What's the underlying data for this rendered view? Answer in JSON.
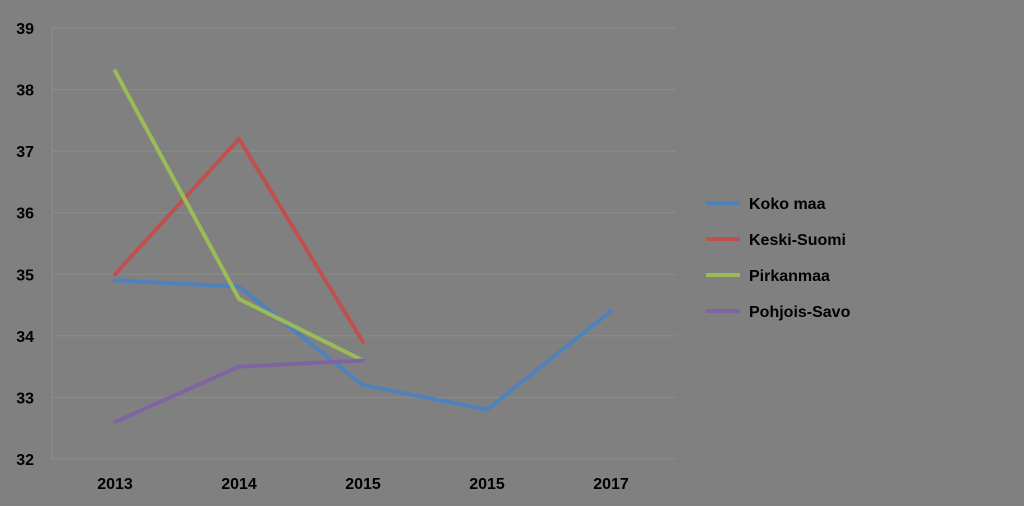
{
  "chart_data": {
    "type": "line",
    "title": "",
    "xlabel": "",
    "ylabel": "",
    "categories": [
      "2013",
      "2014",
      "2015",
      "2015",
      "2017"
    ],
    "ylim": [
      32,
      39
    ],
    "yticks": [
      32,
      33,
      34,
      35,
      36,
      37,
      38,
      39
    ],
    "grid": true,
    "legend": "right",
    "series": [
      {
        "name": "Koko maa",
        "color": "#4f81bd",
        "values": [
          34.9,
          34.8,
          33.2,
          32.8,
          34.4
        ]
      },
      {
        "name": "Keski-Suomi",
        "color": "#c0504d",
        "values": [
          35.0,
          37.2,
          33.9,
          null,
          null
        ]
      },
      {
        "name": "Pirkanmaa",
        "color": "#9bbb59",
        "values": [
          38.3,
          34.6,
          33.6,
          null,
          null
        ]
      },
      {
        "name": "Pohjois-Savo",
        "color": "#8064a2",
        "values": [
          32.6,
          33.5,
          33.6,
          null,
          null
        ]
      }
    ]
  }
}
